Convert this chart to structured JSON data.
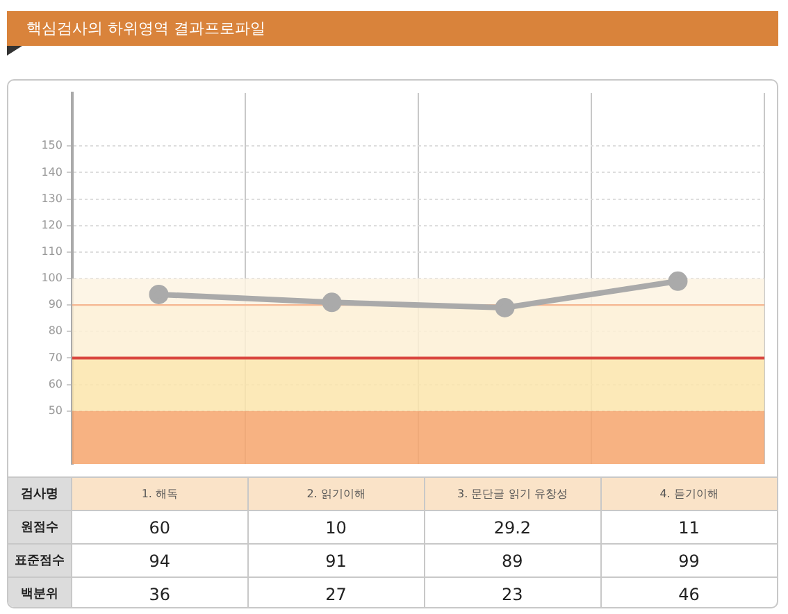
{
  "chart_data": {
    "type": "line",
    "title": "핵심검사의 하위영역 결과프로파일",
    "xlabel": "검사명",
    "categories": [
      "1. 해독",
      "2. 읽기이해",
      "3. 문단글 읽기 유창성",
      "4. 듣기이해"
    ],
    "series": [
      {
        "name": "원점수",
        "type": "other",
        "values": [
          null,
          null,
          null,
          null
        ],
        "value_labels": [
          "60",
          "10",
          "29.2",
          "11"
        ]
      },
      {
        "name": "표준점수",
        "color": "#aaaaaa",
        "values": [
          94,
          91,
          89,
          99
        ]
      },
      {
        "name": "백분위",
        "type": "other",
        "values": [
          null,
          null,
          null,
          null
        ],
        "value_labels": [
          "36",
          "27",
          "23",
          "46"
        ]
      }
    ],
    "ylim": [
      30,
      170
    ],
    "yticks": [
      50,
      60,
      70,
      80,
      90,
      100,
      110,
      120,
      130,
      140,
      150
    ],
    "bands": [
      {
        "axis": "y",
        "from": 90,
        "to": 100,
        "color": "#fdf3e2"
      },
      {
        "axis": "y",
        "from": 70,
        "to": 90,
        "color": "#fdf0d5"
      },
      {
        "axis": "y",
        "from": 50,
        "to": 70,
        "color": "#fce5ab"
      },
      {
        "axis": "y",
        "from": 30,
        "to": 50,
        "color": "#f6a46c"
      }
    ],
    "ref_lines": [
      {
        "axis": "y",
        "value": 90,
        "color": "#f6b792"
      },
      {
        "axis": "y",
        "value": 70,
        "color": "#d9473f"
      }
    ],
    "grid": true,
    "marker": "circle",
    "line_style": "solid",
    "data_labels": true,
    "tick_labels": "y",
    "legend": false
  }
}
